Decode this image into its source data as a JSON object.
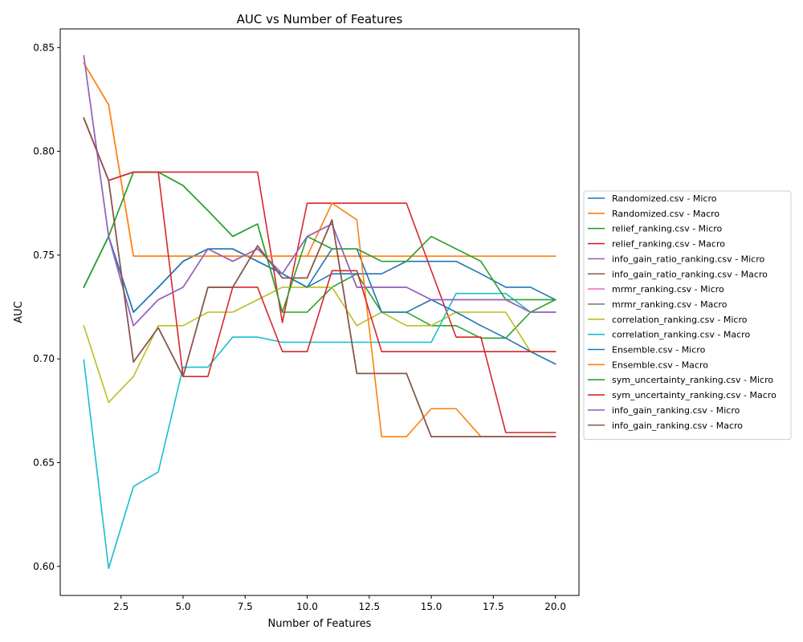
{
  "chart_data": {
    "type": "line",
    "title": "AUC vs Number of Features",
    "xlabel": "Number of Features",
    "ylabel": "AUC",
    "xlim": [
      0.05,
      20.95
    ],
    "ylim": [
      0.586,
      0.859
    ],
    "x_ticks": [
      2.5,
      5.0,
      7.5,
      10.0,
      12.5,
      15.0,
      17.5,
      20.0
    ],
    "x_tick_labels": [
      "2.5",
      "5.0",
      "7.5",
      "10.0",
      "12.5",
      "15.0",
      "17.5",
      "20.0"
    ],
    "y_ticks": [
      0.6,
      0.65,
      0.7,
      0.75,
      0.8,
      0.85
    ],
    "y_tick_labels": [
      "0.60",
      "0.65",
      "0.70",
      "0.75",
      "0.80",
      "0.85"
    ],
    "grid": false,
    "legend_position": "outside-right",
    "x": [
      1,
      2,
      3,
      4,
      5,
      6,
      7,
      8,
      9,
      10,
      11,
      12,
      13,
      14,
      15,
      16,
      17,
      18,
      19,
      20
    ],
    "series": [
      {
        "name": "Randomized.csv - Micro",
        "color": "#1f77b4",
        "values": [
          0.7345,
          0.759,
          0.7225,
          0.7345,
          0.747,
          0.753,
          0.753,
          0.747,
          0.741,
          0.7345,
          0.741,
          0.741,
          0.741,
          0.747,
          0.747,
          0.747,
          0.741,
          0.7345,
          0.7345,
          0.7285
        ]
      },
      {
        "name": "Randomized.csv - Macro",
        "color": "#ff7f0e",
        "values": [
          0.8425,
          0.8225,
          0.7495,
          0.7495,
          0.7495,
          0.7495,
          0.7495,
          0.7495,
          0.7495,
          0.7495,
          0.7495,
          0.7495,
          0.7495,
          0.7495,
          0.7495,
          0.7495,
          0.7495,
          0.7495,
          0.7495,
          0.7495
        ]
      },
      {
        "name": "relief_ranking.csv - Micro",
        "color": "#2ca02c",
        "values": [
          0.7345,
          0.759,
          0.79,
          0.79,
          0.7835,
          0.7715,
          0.759,
          0.765,
          0.7225,
          0.7225,
          0.7345,
          0.741,
          0.7225,
          0.7225,
          0.716,
          0.716,
          0.71,
          0.71,
          0.7225,
          0.7285
        ]
      },
      {
        "name": "relief_ranking.csv - Macro",
        "color": "#d62728",
        "values": [
          0.816,
          0.786,
          0.79,
          0.79,
          0.79,
          0.79,
          0.79,
          0.79,
          0.7175,
          0.775,
          0.775,
          0.775,
          0.775,
          0.775,
          0.7425,
          0.7105,
          0.7105,
          0.6645,
          0.6645,
          0.6645
        ]
      },
      {
        "name": "info_gain_ratio_ranking.csv - Micro",
        "color": "#9467bd",
        "values": [
          0.846,
          0.759,
          0.716,
          0.7285,
          0.7345,
          0.753,
          0.747,
          0.753,
          0.741,
          0.759,
          0.765,
          0.7345,
          0.7345,
          0.7345,
          0.7285,
          0.7285,
          0.7285,
          0.7285,
          0.7225,
          0.7225
        ]
      },
      {
        "name": "info_gain_ratio_ranking.csv - Macro",
        "color": "#8c564b",
        "values": [
          0.816,
          0.786,
          0.6985,
          0.715,
          0.6915,
          0.7345,
          0.7345,
          0.7545,
          0.739,
          0.739,
          0.767,
          0.693,
          0.693,
          0.693,
          0.6625,
          0.6625,
          0.6625,
          0.6625,
          0.6625,
          0.6625
        ]
      },
      {
        "name": "mrmr_ranking.csv - Micro",
        "color": "#e377c2",
        "values": [
          0.846,
          0.759,
          0.716,
          0.7285,
          0.7345,
          0.753,
          0.747,
          0.753,
          0.741,
          0.759,
          0.765,
          0.7345,
          0.7345,
          0.7345,
          0.7285,
          0.7285,
          0.7285,
          0.7285,
          0.7225,
          0.7225
        ]
      },
      {
        "name": "mrmr_ranking.csv - Macro",
        "color": "#7f7f7f",
        "values": [
          0.816,
          0.786,
          0.6985,
          0.715,
          0.6915,
          0.7345,
          0.7345,
          0.7545,
          0.739,
          0.739,
          0.767,
          0.693,
          0.693,
          0.693,
          0.6625,
          0.6625,
          0.6625,
          0.6625,
          0.6625,
          0.6625
        ]
      },
      {
        "name": "correlation_ranking.csv - Micro",
        "color": "#bcbd22",
        "values": [
          0.716,
          0.679,
          0.6915,
          0.716,
          0.716,
          0.7225,
          0.7225,
          0.7285,
          0.7345,
          0.7345,
          0.7345,
          0.716,
          0.7225,
          0.716,
          0.716,
          0.7225,
          0.7225,
          0.7225,
          0.7035,
          0.7035
        ]
      },
      {
        "name": "correlation_ranking.csv - Macro",
        "color": "#17becf",
        "values": [
          0.6995,
          0.599,
          0.6385,
          0.6455,
          0.696,
          0.696,
          0.7105,
          0.7105,
          0.708,
          0.708,
          0.708,
          0.708,
          0.708,
          0.708,
          0.708,
          0.7315,
          0.7315,
          0.7315,
          0.7225,
          0.7225
        ]
      },
      {
        "name": "Ensemble.csv - Micro",
        "color": "#1f77b4",
        "values": [
          0.7345,
          0.759,
          0.7225,
          0.7345,
          0.747,
          0.753,
          0.753,
          0.747,
          0.741,
          0.7345,
          0.753,
          0.753,
          0.7225,
          0.7225,
          0.7285,
          0.7225,
          0.716,
          0.71,
          0.7035,
          0.6975
        ]
      },
      {
        "name": "Ensemble.csv - Macro",
        "color": "#ff7f0e",
        "values": [
          0.8425,
          0.8225,
          0.7495,
          0.7495,
          0.7495,
          0.7495,
          0.7495,
          0.7495,
          0.7495,
          0.7495,
          0.775,
          0.767,
          0.6625,
          0.6625,
          0.676,
          0.676,
          0.6625,
          0.6625,
          0.6625,
          0.6625
        ]
      },
      {
        "name": "sym_uncertainty_ranking.csv - Micro",
        "color": "#2ca02c",
        "values": [
          0.7345,
          0.759,
          0.79,
          0.79,
          0.7835,
          0.7715,
          0.759,
          0.765,
          0.7225,
          0.759,
          0.753,
          0.753,
          0.747,
          0.747,
          0.759,
          0.753,
          0.747,
          0.7285,
          0.7285,
          0.7285
        ]
      },
      {
        "name": "sym_uncertainty_ranking.csv - Macro",
        "color": "#d62728",
        "values": [
          0.816,
          0.786,
          0.79,
          0.79,
          0.6915,
          0.6915,
          0.7345,
          0.7345,
          0.7035,
          0.7035,
          0.7425,
          0.7425,
          0.7035,
          0.7035,
          0.7035,
          0.7035,
          0.7035,
          0.7035,
          0.7035,
          0.7035
        ]
      },
      {
        "name": "info_gain_ranking.csv - Micro",
        "color": "#9467bd",
        "values": [
          0.846,
          0.759,
          0.716,
          0.7285,
          0.7345,
          0.753,
          0.747,
          0.753,
          0.741,
          0.759,
          0.765,
          0.7345,
          0.7345,
          0.7345,
          0.7285,
          0.7285,
          0.7285,
          0.7285,
          0.7225,
          0.7225
        ]
      },
      {
        "name": "info_gain_ranking.csv - Macro",
        "color": "#8c564b",
        "values": [
          0.816,
          0.786,
          0.6985,
          0.715,
          0.6915,
          0.7345,
          0.7345,
          0.7545,
          0.739,
          0.739,
          0.767,
          0.693,
          0.693,
          0.693,
          0.6625,
          0.6625,
          0.6625,
          0.6625,
          0.6625,
          0.6625
        ]
      }
    ]
  }
}
